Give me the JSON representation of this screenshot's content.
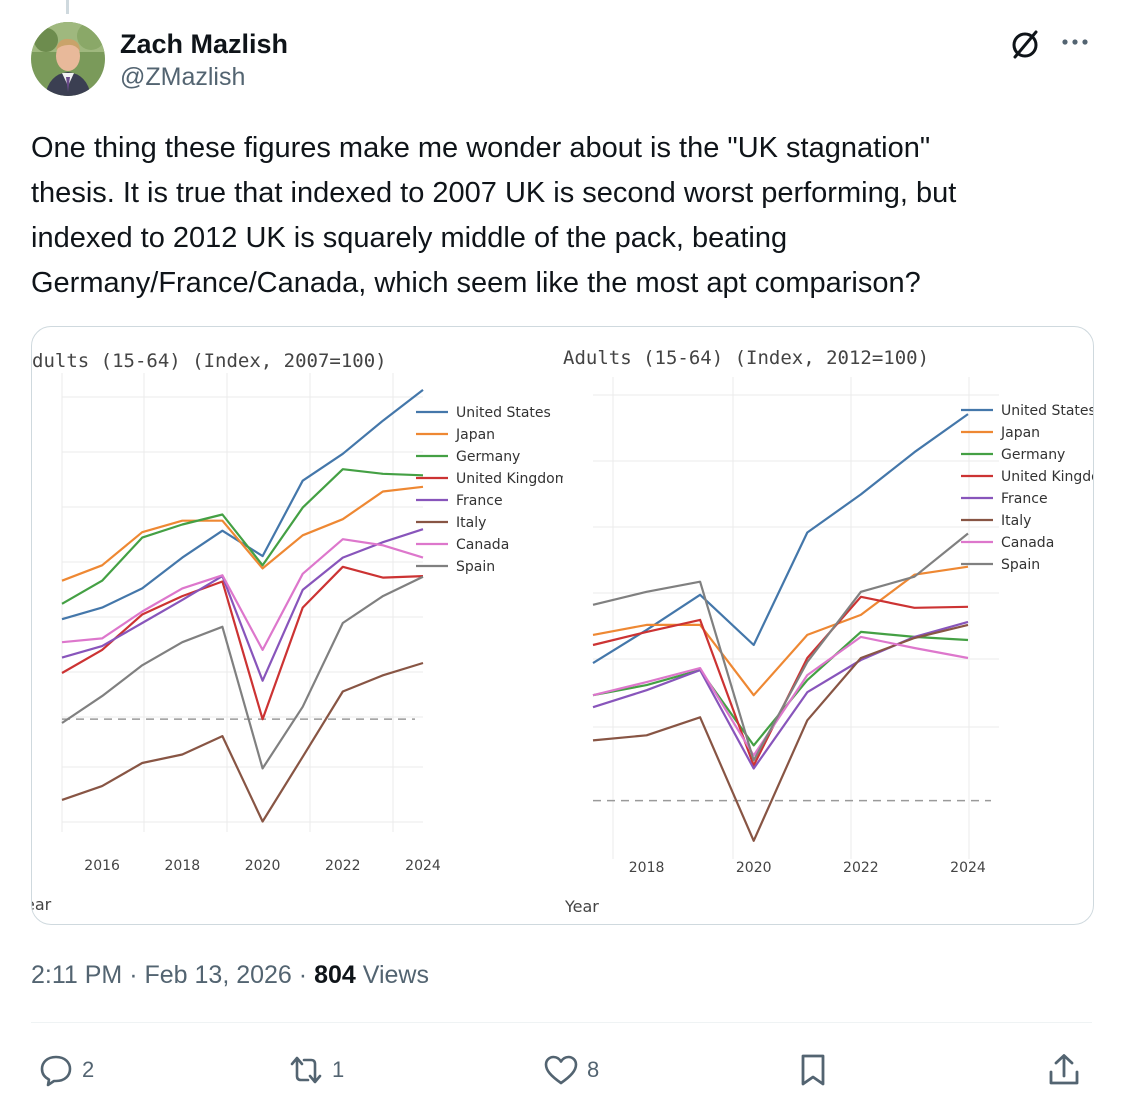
{
  "author": {
    "name": "Zach Mazlish",
    "handle": "@ZMazlish"
  },
  "icons": {
    "grok": "slashed-circle-icon",
    "more": "more-dots-icon",
    "reply": "reply-bubble-icon",
    "retweet": "retweet-arrows-icon",
    "like": "heart-icon",
    "bookmark": "bookmark-icon",
    "share": "share-upload-icon"
  },
  "tweet": {
    "text": "One thing these figures make me wonder about is the \"UK stagnation\"\nthesis. It is true that indexed to 2007 UK is second worst performing, but\nindexed to 2012 UK is squarely middle of the pack, beating\nGermany/France/Canada, which seem like the most apt comparison?",
    "time": "2:11 PM",
    "date": "Feb 13, 2026",
    "views_count": "804",
    "views_label": "Views",
    "separator": "·"
  },
  "actions": {
    "replies": "2",
    "reposts": "1",
    "likes": "8"
  },
  "colors": {
    "United States": "#4477aa",
    "Japan": "#ee8833",
    "Germany": "#44a044",
    "United Kingdom": "#cc3333",
    "France": "#8855bb",
    "Italy": "#885544",
    "Canada": "#dd77cc",
    "Spain": "#808080"
  },
  "chart_data": [
    {
      "type": "line",
      "title": "dults (15-64) (Index, 2007=100)",
      "xlabel": "ear",
      "x_ticks": [
        "2016",
        "2018",
        "2020",
        "2022",
        "2024"
      ],
      "x": [
        2015,
        2016,
        2017,
        2018,
        2019,
        2020,
        2021,
        2022,
        2023,
        2024
      ],
      "reference_line": "dashed at index 100",
      "grid": true,
      "legend": "top-right",
      "series": [
        {
          "name": "United States",
          "values": [
            113,
            114.5,
            117,
            121,
            124.5,
            121.2,
            131,
            134.5,
            138.8,
            142.8
          ]
        },
        {
          "name": "Japan",
          "values": [
            118,
            120,
            124.3,
            125.8,
            125.8,
            119.6,
            123.9,
            126,
            129.6,
            130.2
          ]
        },
        {
          "name": "Germany",
          "values": [
            115,
            118,
            123.6,
            125.3,
            126.6,
            120,
            127.5,
            132.5,
            131.9,
            131.7
          ]
        },
        {
          "name": "United Kingdom",
          "values": [
            106,
            109,
            113.6,
            116,
            117.9,
            100,
            114.5,
            119.8,
            118.4,
            118.6
          ]
        },
        {
          "name": "France",
          "values": [
            108,
            109.5,
            112.5,
            115.5,
            118.6,
            105,
            116.8,
            121,
            123,
            124.7
          ]
        },
        {
          "name": "Italy",
          "values": [
            89.5,
            91.3,
            94.3,
            95.4,
            97.8,
            86.7,
            95.1,
            103.6,
            105.7,
            107.3
          ]
        },
        {
          "name": "Canada",
          "values": [
            110,
            110.5,
            114,
            117,
            118.7,
            109,
            118.9,
            123.4,
            122.6,
            121
          ]
        },
        {
          "name": "Spain",
          "values": [
            99.5,
            103,
            107,
            110,
            112,
            93.6,
            101.6,
            112.5,
            116,
            118.5
          ]
        }
      ]
    },
    {
      "type": "line",
      "title": "Adults (15-64) (Index, 2012=100)",
      "xlabel": "Year",
      "x_ticks": [
        "2018",
        "2020",
        "2022",
        "2024"
      ],
      "x": [
        2017,
        2018,
        2019,
        2020,
        2021,
        2022,
        2023,
        2024
      ],
      "reference_line": "dashed at index 100",
      "grid": true,
      "legend": "top-right",
      "series": [
        {
          "name": "United States",
          "values": [
            113.7,
            117,
            120.5,
            115.5,
            126.7,
            130.5,
            134.7,
            138.5
          ]
        },
        {
          "name": "Japan",
          "values": [
            116.5,
            117.5,
            117.5,
            110.5,
            116.5,
            118.5,
            122.5,
            123.3
          ]
        },
        {
          "name": "Germany",
          "values": [
            110.5,
            111.5,
            113,
            105.5,
            112,
            116.8,
            116.3,
            116
          ]
        },
        {
          "name": "United Kingdom",
          "values": [
            115.5,
            116.8,
            118,
            103.5,
            114.2,
            120.3,
            119.2,
            119.3
          ]
        },
        {
          "name": "France",
          "values": [
            109.3,
            111,
            113,
            103.2,
            110.8,
            114,
            116.3,
            117.8
          ]
        },
        {
          "name": "Italy",
          "values": [
            106,
            106.5,
            108.3,
            96,
            108,
            114.2,
            116.2,
            117.5
          ]
        },
        {
          "name": "Canada",
          "values": [
            110.5,
            111.8,
            113.2,
            104.5,
            112.5,
            116.3,
            115.2,
            114.2
          ]
        },
        {
          "name": "Spain",
          "values": [
            119.5,
            120.8,
            121.8,
            104,
            113.8,
            120.8,
            122.3,
            126.6
          ]
        }
      ]
    }
  ]
}
